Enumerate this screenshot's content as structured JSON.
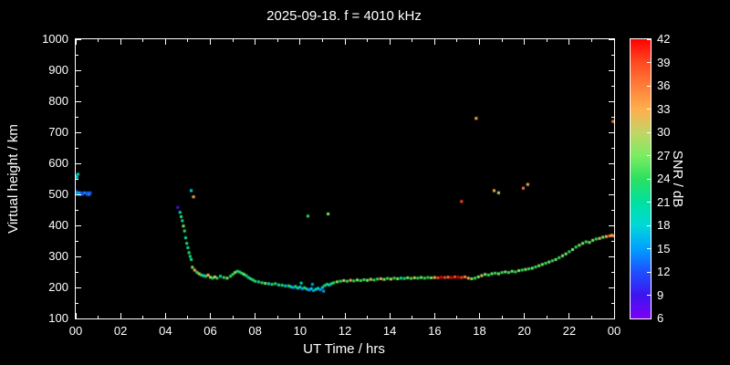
{
  "title": "2025-09-18. f = 4010 kHz",
  "chart_data": {
    "type": "scatter",
    "title": "2025-09-18. f = 4010 kHz",
    "xlabel": "UT Time / hrs",
    "ylabel": "Virtual height / km",
    "xlim": [
      0,
      24
    ],
    "ylim": [
      100,
      1000
    ],
    "background_color": "#000000",
    "frame_color": "#ffffff",
    "text_color": "#ffffff",
    "x_ticks": [
      0,
      2,
      4,
      6,
      8,
      10,
      12,
      14,
      16,
      18,
      20,
      22,
      24
    ],
    "x_tick_labels": [
      "00",
      "02",
      "04",
      "06",
      "08",
      "10",
      "12",
      "14",
      "16",
      "18",
      "20",
      "22",
      "00"
    ],
    "x_minor_step": 1,
    "y_ticks": [
      100,
      200,
      300,
      400,
      500,
      600,
      700,
      800,
      900,
      1000
    ],
    "y_tick_labels": [
      "100",
      "200",
      "300",
      "400",
      "500",
      "600",
      "700",
      "800",
      "900",
      "1000"
    ],
    "y_minor_step": 50,
    "point_size": 3,
    "colorbar": {
      "label": "SNR / dB",
      "min": 6,
      "max": 42,
      "ticks": [
        6,
        9,
        12,
        15,
        18,
        21,
        24,
        27,
        30,
        33,
        36,
        39,
        42
      ],
      "tick_labels": [
        "6",
        "9",
        "12",
        "15",
        "18",
        "21",
        "24",
        "27",
        "30",
        "33",
        "36",
        "39",
        "42"
      ],
      "stops": [
        {
          "v": 6,
          "color": "#7d00f5"
        },
        {
          "v": 9,
          "color": "#3c14f0"
        },
        {
          "v": 12,
          "color": "#1e50ff"
        },
        {
          "v": 15,
          "color": "#00a0ff"
        },
        {
          "v": 18,
          "color": "#00d8d8"
        },
        {
          "v": 21,
          "color": "#00e0a0"
        },
        {
          "v": 24,
          "color": "#2ce05f"
        },
        {
          "v": 27,
          "color": "#7bed62"
        },
        {
          "v": 30,
          "color": "#c3d465"
        },
        {
          "v": 33,
          "color": "#ffae4d"
        },
        {
          "v": 36,
          "color": "#ff7e38"
        },
        {
          "v": 39,
          "color": "#ff4a22"
        },
        {
          "v": 42,
          "color": "#ff0000"
        }
      ]
    },
    "points": [
      [
        0.0,
        560,
        15
      ],
      [
        0.05,
        555,
        18
      ],
      [
        0.1,
        565,
        21
      ],
      [
        0.0,
        510,
        12
      ],
      [
        0.05,
        505,
        15
      ],
      [
        0.1,
        500,
        12
      ],
      [
        0.15,
        505,
        18
      ],
      [
        0.2,
        500,
        15
      ],
      [
        0.25,
        505,
        12
      ],
      [
        0.3,
        500,
        12
      ],
      [
        0.4,
        505,
        15
      ],
      [
        0.5,
        500,
        12
      ],
      [
        0.55,
        505,
        12
      ],
      [
        0.6,
        500,
        15
      ],
      [
        0.65,
        505,
        12
      ],
      [
        4.55,
        458,
        9
      ],
      [
        5.15,
        512,
        18
      ],
      [
        5.25,
        492,
        33
      ],
      [
        4.65,
        442,
        21
      ],
      [
        4.7,
        428,
        24
      ],
      [
        4.75,
        415,
        21
      ],
      [
        4.8,
        398,
        27
      ],
      [
        4.85,
        382,
        24
      ],
      [
        4.9,
        360,
        21
      ],
      [
        4.95,
        342,
        24
      ],
      [
        5.0,
        328,
        21
      ],
      [
        5.05,
        312,
        24
      ],
      [
        5.1,
        300,
        21
      ],
      [
        5.15,
        290,
        24
      ],
      [
        5.2,
        265,
        27
      ],
      [
        5.3,
        256,
        33
      ],
      [
        5.4,
        249,
        24
      ],
      [
        5.5,
        244,
        30
      ],
      [
        5.6,
        240,
        24
      ],
      [
        5.7,
        238,
        18
      ],
      [
        5.8,
        236,
        24
      ],
      [
        5.9,
        240,
        33
      ],
      [
        6.0,
        233,
        27
      ],
      [
        6.1,
        230,
        24
      ],
      [
        6.2,
        234,
        30
      ],
      [
        6.3,
        230,
        24
      ],
      [
        6.45,
        236,
        21
      ],
      [
        6.6,
        232,
        24
      ],
      [
        6.75,
        230,
        27
      ],
      [
        6.9,
        236,
        24
      ],
      [
        7.0,
        242,
        24
      ],
      [
        7.1,
        248,
        27
      ],
      [
        7.2,
        252,
        24
      ],
      [
        7.3,
        250,
        21
      ],
      [
        7.4,
        246,
        24
      ],
      [
        7.5,
        242,
        27
      ],
      [
        7.6,
        238,
        24
      ],
      [
        7.7,
        232,
        18
      ],
      [
        7.8,
        228,
        24
      ],
      [
        7.9,
        224,
        24
      ],
      [
        8.0,
        220,
        24
      ],
      [
        8.15,
        218,
        21
      ],
      [
        8.3,
        215,
        24
      ],
      [
        8.45,
        213,
        27
      ],
      [
        8.6,
        212,
        18
      ],
      [
        8.75,
        210,
        24
      ],
      [
        8.9,
        212,
        24
      ],
      [
        9.05,
        208,
        21
      ],
      [
        9.2,
        207,
        24
      ],
      [
        9.35,
        205,
        18
      ],
      [
        9.5,
        205,
        24
      ],
      [
        9.6,
        202,
        18
      ],
      [
        9.7,
        200,
        15
      ],
      [
        9.8,
        203,
        24
      ],
      [
        9.9,
        198,
        18
      ],
      [
        10.0,
        201,
        21
      ],
      [
        10.05,
        214,
        18
      ],
      [
        10.1,
        196,
        15
      ],
      [
        10.2,
        199,
        24
      ],
      [
        10.3,
        195,
        18
      ],
      [
        10.4,
        192,
        15
      ],
      [
        10.5,
        196,
        18
      ],
      [
        10.55,
        210,
        15
      ],
      [
        10.6,
        190,
        15
      ],
      [
        10.7,
        194,
        21
      ],
      [
        10.8,
        197,
        18
      ],
      [
        10.9,
        193,
        15
      ],
      [
        11.0,
        200,
        18
      ],
      [
        11.05,
        188,
        15
      ],
      [
        11.1,
        206,
        24
      ],
      [
        11.2,
        210,
        21
      ],
      [
        11.3,
        208,
        18
      ],
      [
        11.4,
        212,
        24
      ],
      [
        11.5,
        215,
        24
      ],
      [
        11.65,
        218,
        27
      ],
      [
        11.8,
        220,
        24
      ],
      [
        11.95,
        222,
        30
      ],
      [
        12.1,
        220,
        24
      ],
      [
        12.25,
        223,
        33
      ],
      [
        12.4,
        221,
        24
      ],
      [
        12.55,
        224,
        27
      ],
      [
        12.7,
        222,
        24
      ],
      [
        12.85,
        225,
        24
      ],
      [
        13.0,
        223,
        27
      ],
      [
        13.15,
        226,
        30
      ],
      [
        13.3,
        224,
        24
      ],
      [
        13.45,
        227,
        24
      ],
      [
        13.6,
        228,
        33
      ],
      [
        13.75,
        226,
        27
      ],
      [
        13.9,
        229,
        24
      ],
      [
        14.05,
        227,
        30
      ],
      [
        14.2,
        230,
        24
      ],
      [
        14.35,
        228,
        27
      ],
      [
        14.5,
        230,
        21
      ],
      [
        14.65,
        229,
        24
      ],
      [
        14.8,
        231,
        27
      ],
      [
        14.95,
        229,
        24
      ],
      [
        15.1,
        231,
        30
      ],
      [
        15.25,
        230,
        24
      ],
      [
        15.4,
        232,
        27
      ],
      [
        15.55,
        230,
        24
      ],
      [
        15.7,
        232,
        24
      ],
      [
        15.85,
        231,
        27
      ],
      [
        16.0,
        232,
        33
      ],
      [
        16.15,
        231,
        39
      ],
      [
        16.3,
        233,
        42
      ],
      [
        16.45,
        232,
        39
      ],
      [
        16.6,
        233,
        36
      ],
      [
        16.75,
        232,
        42
      ],
      [
        16.9,
        234,
        39
      ],
      [
        17.05,
        233,
        42
      ],
      [
        17.2,
        232,
        39
      ],
      [
        17.35,
        234,
        36
      ],
      [
        17.5,
        230,
        33
      ],
      [
        17.65,
        228,
        27
      ],
      [
        17.8,
        230,
        24
      ],
      [
        17.95,
        234,
        27
      ],
      [
        18.1,
        238,
        30
      ],
      [
        18.25,
        242,
        27
      ],
      [
        18.4,
        240,
        24
      ],
      [
        18.55,
        244,
        27
      ],
      [
        18.7,
        246,
        24
      ],
      [
        18.85,
        244,
        27
      ],
      [
        19.0,
        248,
        24
      ],
      [
        19.15,
        250,
        27
      ],
      [
        19.3,
        248,
        24
      ],
      [
        19.45,
        252,
        27
      ],
      [
        19.6,
        250,
        24
      ],
      [
        19.75,
        254,
        27
      ],
      [
        19.9,
        256,
        24
      ],
      [
        20.05,
        258,
        27
      ],
      [
        20.2,
        260,
        24
      ],
      [
        20.35,
        262,
        27
      ],
      [
        20.5,
        266,
        24
      ],
      [
        20.65,
        270,
        27
      ],
      [
        20.8,
        274,
        27
      ],
      [
        20.95,
        278,
        24
      ],
      [
        21.1,
        282,
        27
      ],
      [
        21.25,
        286,
        24
      ],
      [
        21.4,
        290,
        27
      ],
      [
        21.55,
        296,
        24
      ],
      [
        21.7,
        302,
        27
      ],
      [
        21.85,
        308,
        27
      ],
      [
        22.0,
        315,
        24
      ],
      [
        22.15,
        322,
        27
      ],
      [
        22.3,
        330,
        24
      ],
      [
        22.45,
        336,
        27
      ],
      [
        22.6,
        342,
        27
      ],
      [
        22.75,
        347,
        24
      ],
      [
        22.9,
        345,
        27
      ],
      [
        23.05,
        352,
        27
      ],
      [
        23.2,
        356,
        24
      ],
      [
        23.35,
        358,
        30
      ],
      [
        23.5,
        362,
        27
      ],
      [
        23.65,
        364,
        33
      ],
      [
        23.8,
        366,
        36
      ],
      [
        23.9,
        368,
        33
      ],
      [
        23.98,
        366,
        36
      ],
      [
        10.35,
        430,
        24
      ],
      [
        11.25,
        437,
        27
      ],
      [
        17.2,
        477,
        39
      ],
      [
        17.85,
        745,
        33
      ],
      [
        18.65,
        512,
        33
      ],
      [
        18.85,
        505,
        30
      ],
      [
        19.95,
        520,
        36
      ],
      [
        20.15,
        532,
        33
      ],
      [
        23.95,
        735,
        36
      ]
    ]
  }
}
